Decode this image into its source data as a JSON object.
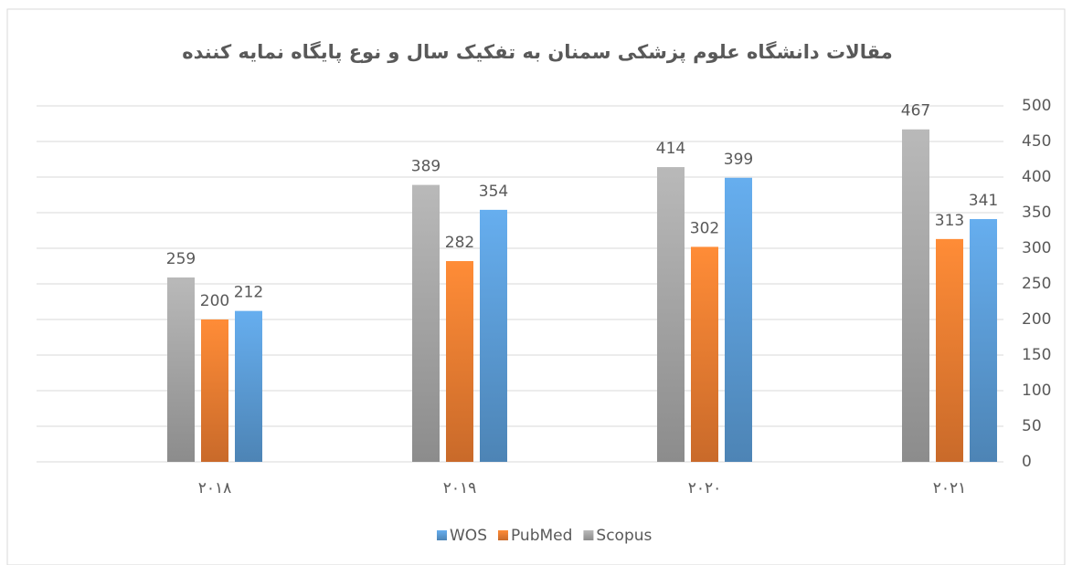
{
  "chart_data": {
    "type": "bar",
    "title": "مقالات دانشگاه علوم پزشکی سمنان به تفکیک سال و نوع پایگاه نمایه کننده",
    "categories": [
      "۲۰۱۸",
      "۲۰۱۹",
      "۲۰۲۰",
      "۲۰۲۱"
    ],
    "series": [
      {
        "name": "Scopus",
        "color": "#a5a5a5",
        "values": [
          259,
          389,
          414,
          467
        ]
      },
      {
        "name": "PubMed",
        "color": "#ed7d31",
        "values": [
          200,
          282,
          302,
          313
        ]
      },
      {
        "name": "WOS",
        "color": "#5b9bd5",
        "values": [
          212,
          354,
          399,
          341
        ]
      }
    ],
    "ylim": [
      0,
      500
    ],
    "yticks": [
      0,
      50,
      100,
      150,
      200,
      250,
      300,
      350,
      400,
      450,
      500
    ],
    "grid": true,
    "legend": "bottom"
  }
}
